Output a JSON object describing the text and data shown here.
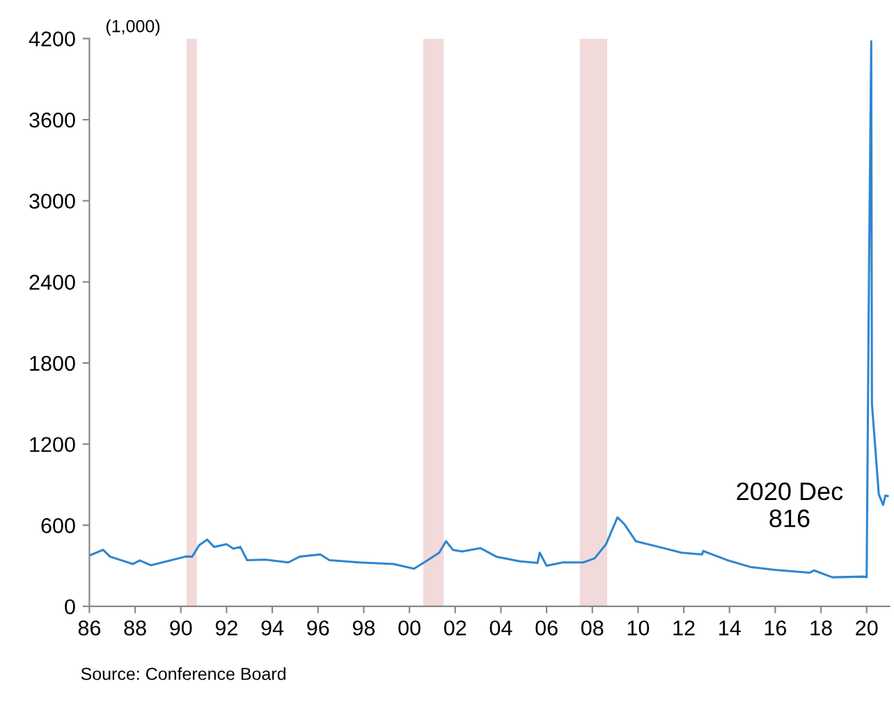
{
  "chart_data": {
    "type": "line",
    "ylabel": "(1,000)",
    "x": [
      1986.0,
      1986.6,
      1986.9,
      1987.9,
      1988.2,
      1988.7,
      1989.4,
      1990.2,
      1990.5,
      1990.8,
      1991.15,
      1991.45,
      1992.0,
      1992.3,
      1992.6,
      1992.9,
      1993.7,
      1994.7,
      1995.2,
      1996.1,
      1996.5,
      1997.8,
      1999.3,
      2000.2,
      2000.8,
      2001.3,
      2001.6,
      2001.9,
      2002.3,
      2003.1,
      2003.8,
      2004.8,
      2005.6,
      2005.7,
      2006.0,
      2006.7,
      2007.6,
      2008.1,
      2008.6,
      2009.1,
      2009.4,
      2009.9,
      2010.9,
      2011.9,
      2012.8,
      2012.85,
      2013.9,
      2014.9,
      2016.0,
      2017.5,
      2017.7,
      2018.5,
      2019.9,
      2020.0,
      2020.1,
      2020.2,
      2020.23,
      2020.53,
      2020.72,
      2020.82,
      2020.92
    ],
    "series": [
      {
        "color": "#2e86cf",
        "values": [
          376,
          418,
          368,
          313,
          340,
          304,
          334,
          368,
          368,
          452,
          494,
          440,
          460,
          427,
          440,
          342,
          346,
          325,
          368,
          384,
          342,
          325,
          313,
          279,
          342,
          397,
          482,
          418,
          406,
          431,
          368,
          334,
          321,
          397,
          300,
          325,
          325,
          355,
          460,
          659,
          608,
          482,
          440,
          397,
          384,
          410,
          342,
          292,
          270,
          249,
          266,
          215,
          220,
          216,
          2430,
          4180,
          1500,
          830,
          750,
          820,
          816
        ]
      }
    ],
    "xlim": [
      1986,
      2021
    ],
    "xticks": [
      {
        "value": 1986,
        "label": "86"
      },
      {
        "value": 1988,
        "label": "88"
      },
      {
        "value": 1990,
        "label": "90"
      },
      {
        "value": 1992,
        "label": "92"
      },
      {
        "value": 1994,
        "label": "94"
      },
      {
        "value": 1996,
        "label": "96"
      },
      {
        "value": 1998,
        "label": "98"
      },
      {
        "value": 2000,
        "label": "00"
      },
      {
        "value": 2002,
        "label": "02"
      },
      {
        "value": 2004,
        "label": "04"
      },
      {
        "value": 2006,
        "label": "06"
      },
      {
        "value": 2008,
        "label": "08"
      },
      {
        "value": 2010,
        "label": "10"
      },
      {
        "value": 2012,
        "label": "12"
      },
      {
        "value": 2014,
        "label": "14"
      },
      {
        "value": 2016,
        "label": "16"
      },
      {
        "value": 2018,
        "label": "18"
      },
      {
        "value": 2020,
        "label": "20"
      }
    ],
    "ylim": [
      0,
      4200
    ],
    "yticks": [
      0,
      600,
      1200,
      1800,
      2400,
      3000,
      3600,
      4200
    ],
    "bands": [
      {
        "axis": "x",
        "from": 1990.25,
        "to": 1990.7,
        "color": "#f2dada"
      },
      {
        "axis": "x",
        "from": 2000.6,
        "to": 2001.5,
        "color": "#f2dada"
      },
      {
        "axis": "x",
        "from": 2007.45,
        "to": 2008.65,
        "color": "#f2dada"
      }
    ],
    "annotations": [
      "2020 Dec\n816",
      "Source: Conference Board"
    ],
    "grid": false,
    "legend": false,
    "marker": "none",
    "line_style": "solid"
  }
}
